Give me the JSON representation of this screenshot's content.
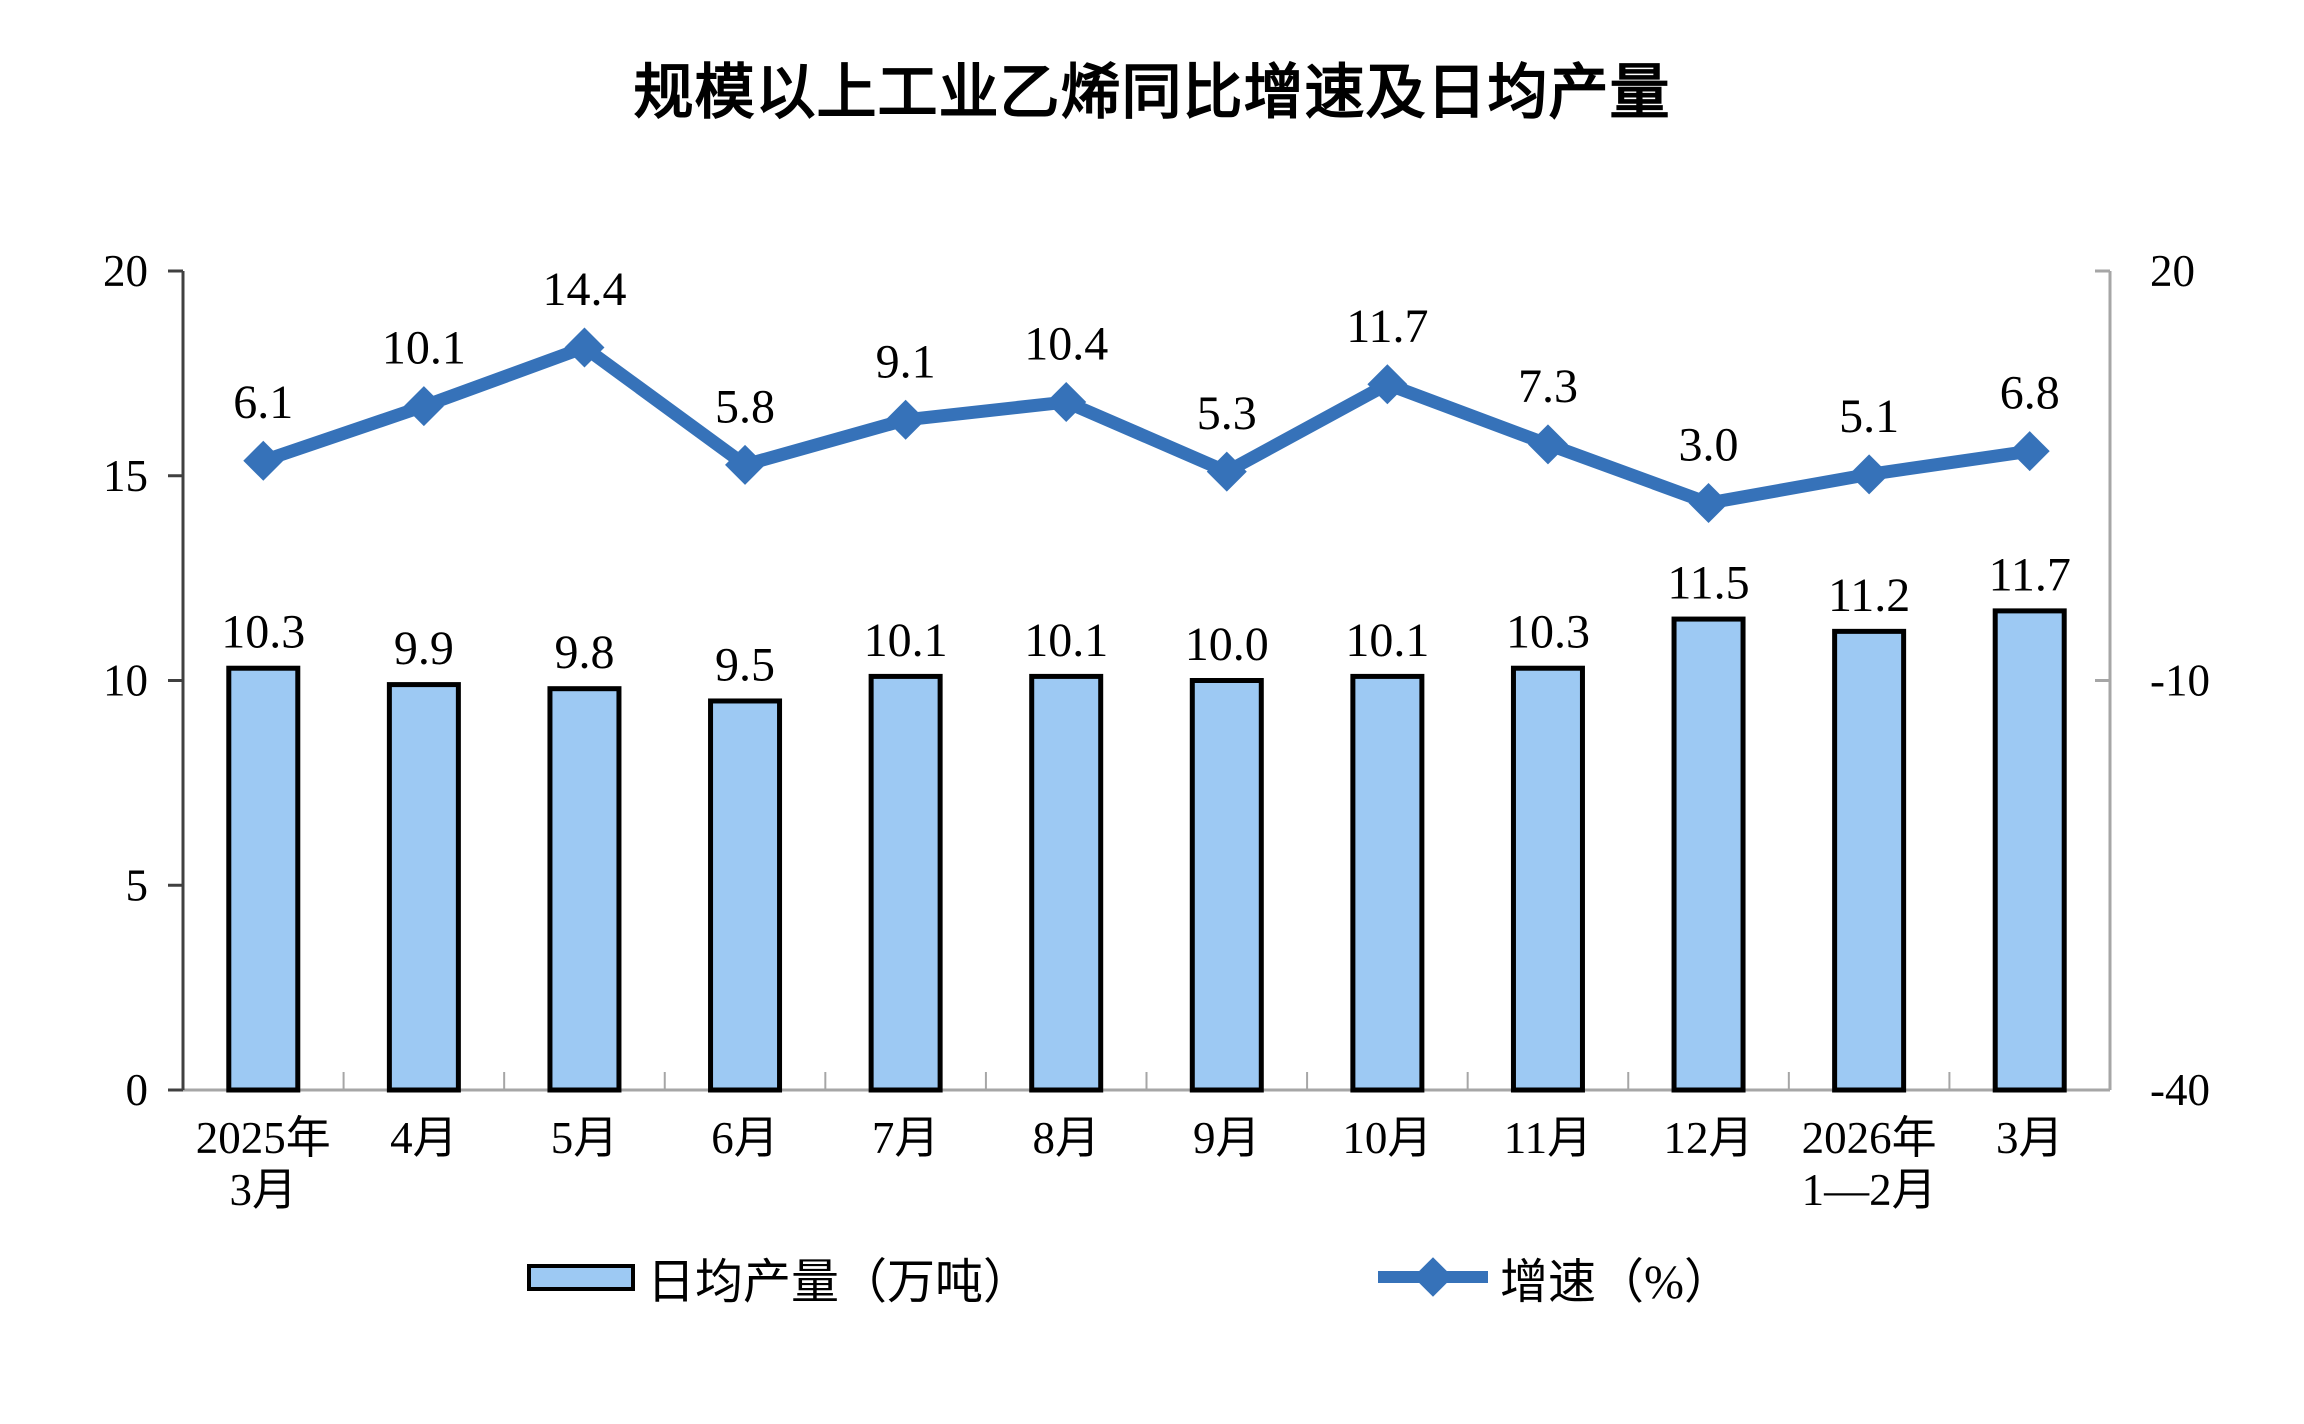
{
  "title": "规模以上工业乙烯同比增速及日均产量",
  "legend": [
    {
      "label": "日均产量（万吨）",
      "series": "bars"
    },
    {
      "label": "增速（%）",
      "series": "line"
    }
  ],
  "colors": {
    "bar_fill": "#9DC9F3",
    "bar_border": "#000000",
    "line": "#3672B9",
    "axis_left": "#404040",
    "axis_light": "#A6A6A6",
    "label_text": "#000000"
  },
  "chart_data": {
    "type": "combo",
    "categories": [
      "2025年\n3月",
      "4月",
      "5月",
      "6月",
      "7月",
      "8月",
      "9月",
      "10月",
      "11月",
      "12月",
      "2026年\n1—2月",
      "3月"
    ],
    "series": [
      {
        "name": "日均产量（万吨）",
        "type": "bar",
        "axis": "left",
        "values": [
          10.3,
          9.9,
          9.8,
          9.5,
          10.1,
          10.1,
          10.0,
          10.1,
          10.3,
          11.5,
          11.2,
          11.7
        ]
      },
      {
        "name": "增速（%）",
        "type": "line",
        "axis": "right",
        "values": [
          6.1,
          10.1,
          14.4,
          5.8,
          9.1,
          10.4,
          5.3,
          11.7,
          7.3,
          3.0,
          5.1,
          6.8
        ]
      }
    ],
    "left_axis": {
      "min": 0,
      "max": 20,
      "ticks": [
        0,
        5,
        10,
        15,
        20
      ]
    },
    "right_axis": {
      "min": -40,
      "max": 20,
      "ticks": [
        -40,
        -10,
        20
      ]
    },
    "grid": false,
    "legend_position": "bottom",
    "data_labels": "one-decimal"
  }
}
